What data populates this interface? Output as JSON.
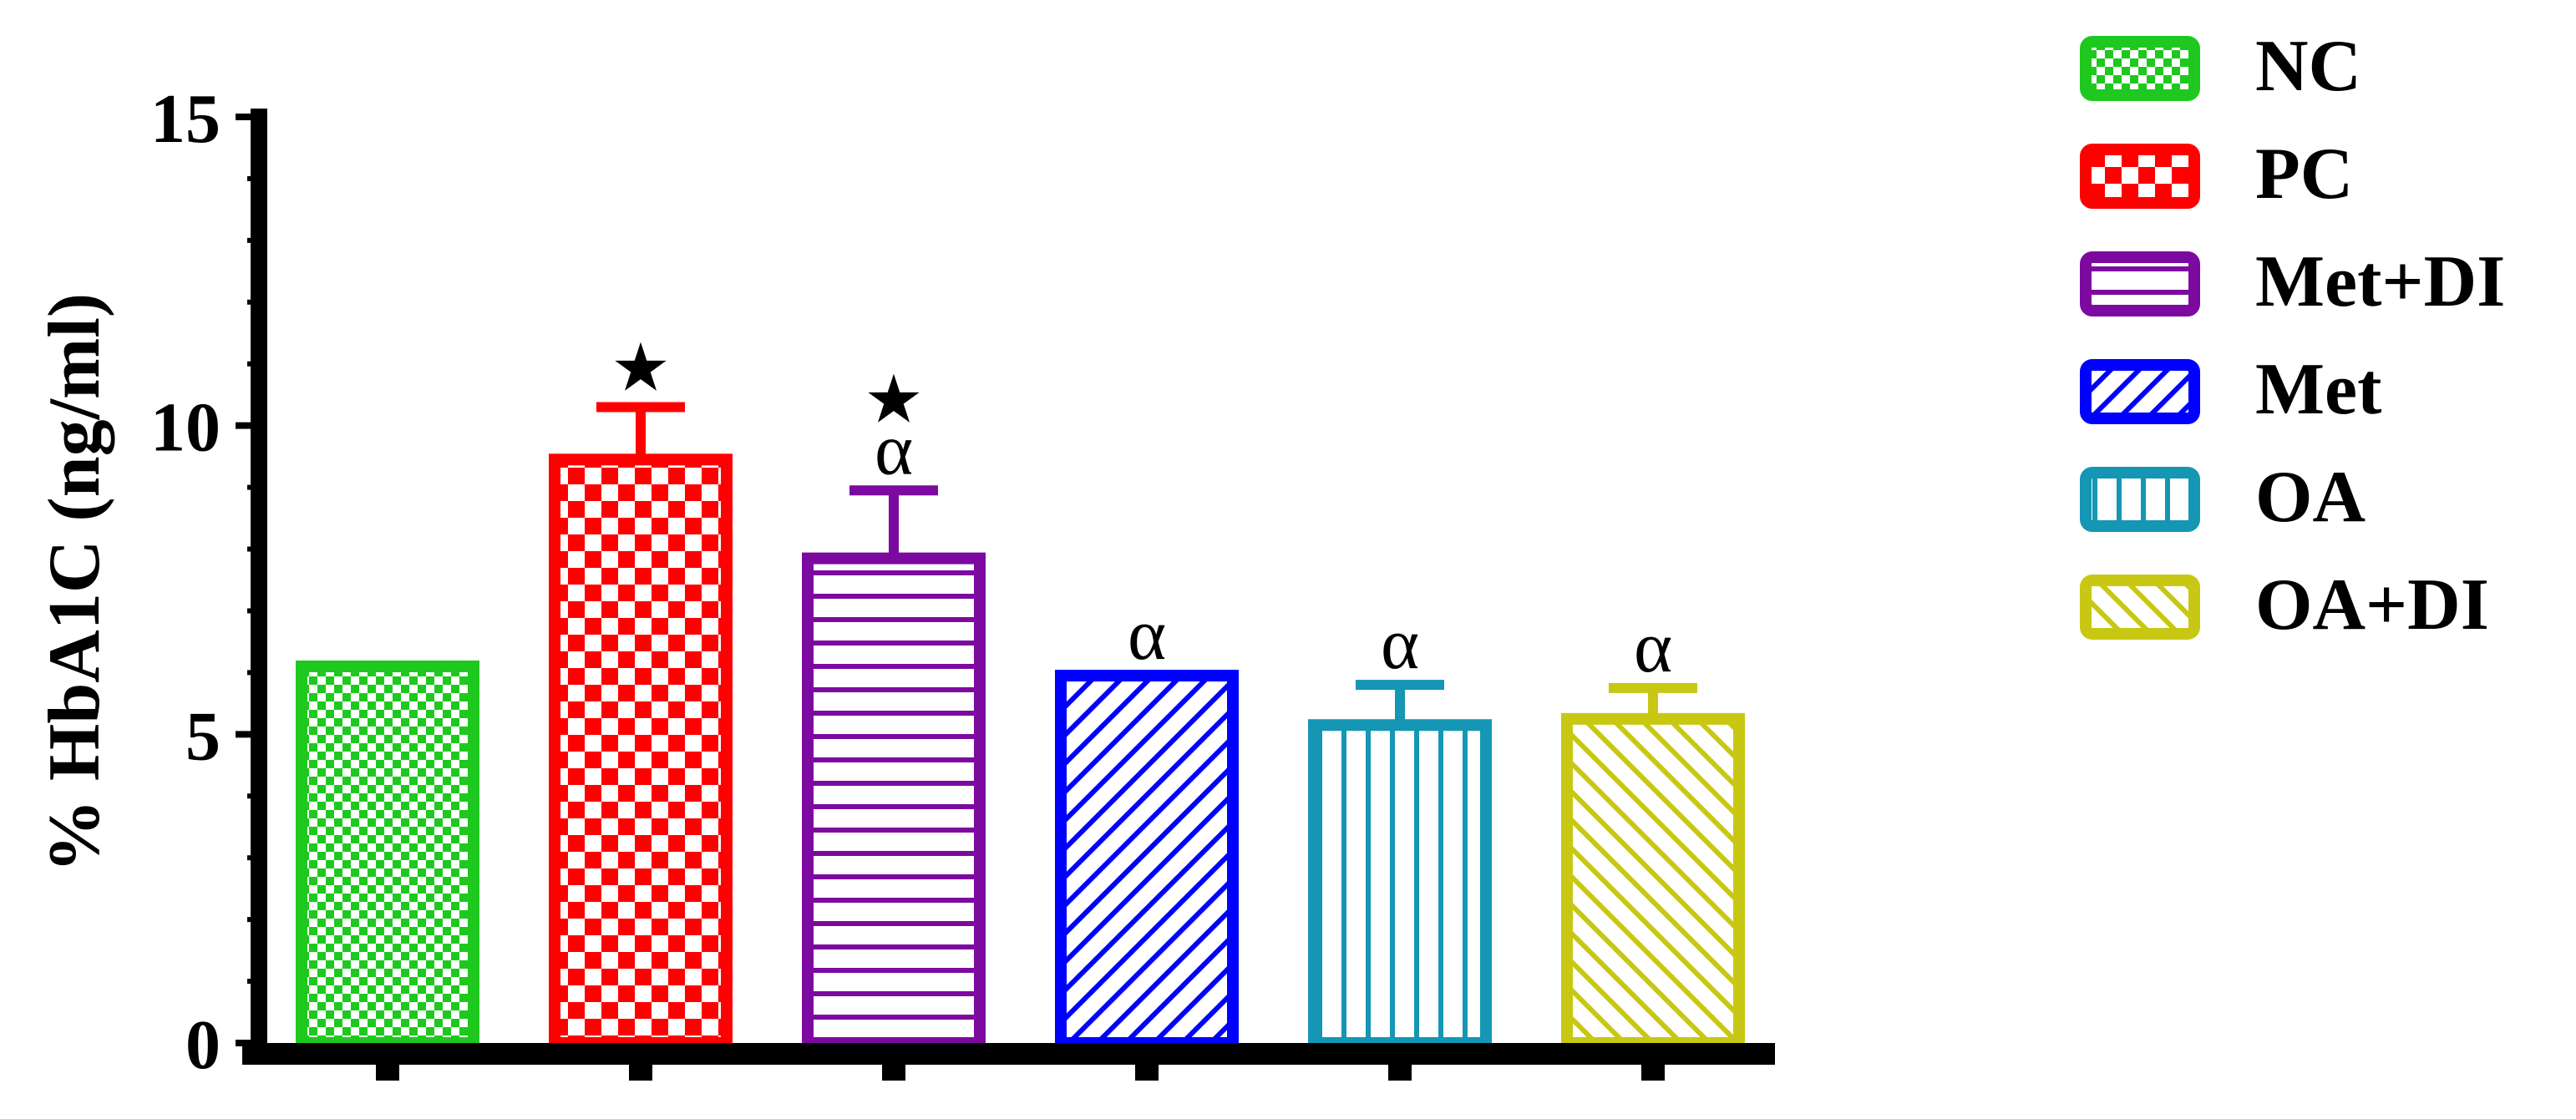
{
  "chart_data": {
    "type": "bar",
    "ylabel": "% HbA1C (ng/ml)",
    "ylim": [
      0,
      15
    ],
    "yticks": [
      "0",
      "5",
      "10",
      "15"
    ],
    "grid": false,
    "legend_position": "right",
    "series": [
      {
        "name": "NC",
        "value": 6.1,
        "error": 0.05,
        "annotations": [],
        "color": "#1ec81e",
        "pattern": "fine-check"
      },
      {
        "name": "PC",
        "value": 9.45,
        "error": 0.85,
        "annotations": [
          "★"
        ],
        "color": "#ff0000",
        "pattern": "coarse-check"
      },
      {
        "name": "Met+DI",
        "value": 7.85,
        "error": 1.1,
        "annotations": [
          "★",
          "α"
        ],
        "color": "#7d0aa0",
        "pattern": "horizontal"
      },
      {
        "name": "Met",
        "value": 5.95,
        "error": 0.05,
        "annotations": [
          "α"
        ],
        "color": "#0000ff",
        "pattern": "diagonal-up"
      },
      {
        "name": "OA",
        "value": 5.15,
        "error": 0.65,
        "annotations": [
          "α"
        ],
        "color": "#1496b4",
        "pattern": "vertical"
      },
      {
        "name": "OA+DI",
        "value": 5.25,
        "error": 0.5,
        "annotations": [
          "α"
        ],
        "color": "#c8c814",
        "pattern": "diagonal-down"
      }
    ]
  }
}
